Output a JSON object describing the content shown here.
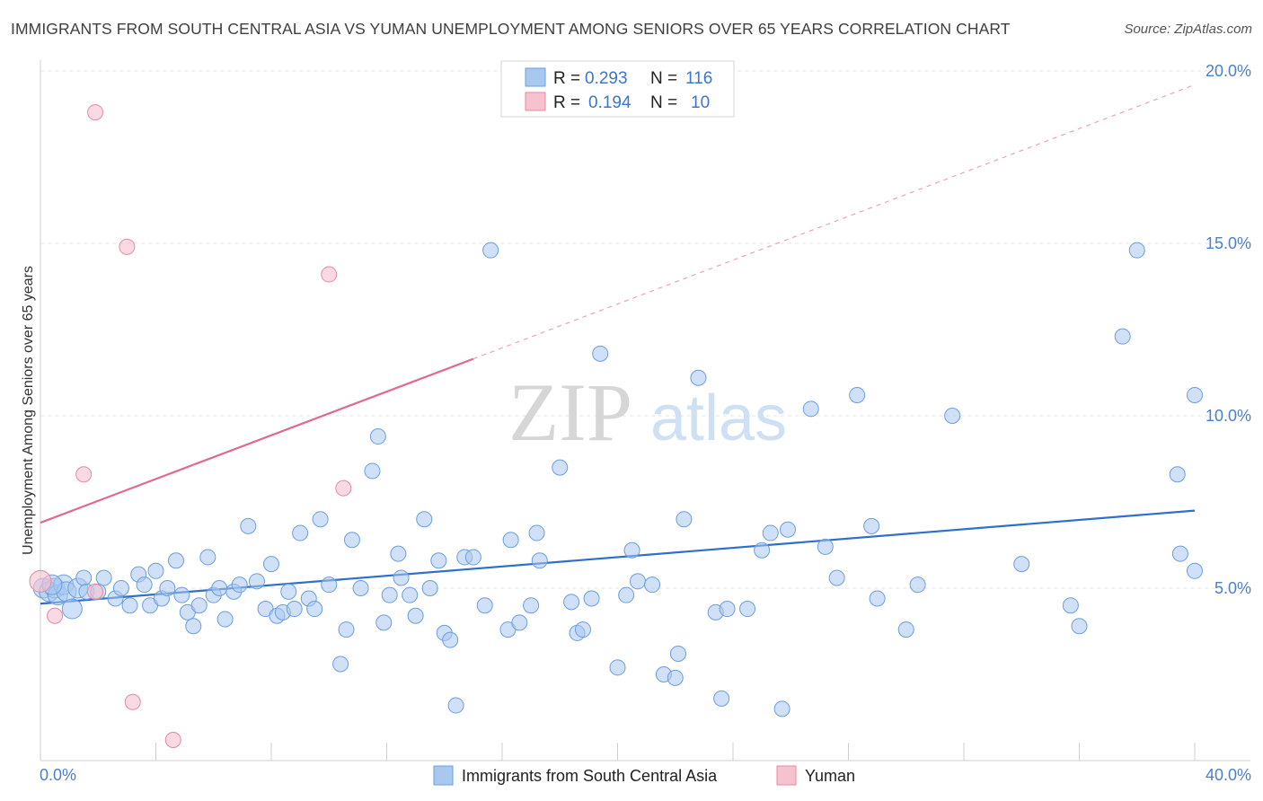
{
  "title": "IMMIGRANTS FROM SOUTH CENTRAL ASIA VS YUMAN UNEMPLOYMENT AMONG SENIORS OVER 65 YEARS CORRELATION CHART",
  "source": "Source: ZipAtlas.com",
  "watermark": {
    "zip": "ZIP",
    "atlas": "atlas"
  },
  "legend": {
    "r_label": "R =",
    "n_label": "N =",
    "rows": [
      {
        "r": "0.293",
        "n": "116"
      },
      {
        "r": "0.194",
        "n": "10"
      }
    ]
  },
  "chart_data": {
    "type": "scatter",
    "title": "IMMIGRANTS FROM SOUTH CENTRAL ASIA VS YUMAN UNEMPLOYMENT AMONG SENIORS OVER 65 YEARS CORRELATION CHART",
    "xlabel": "",
    "ylabel": "Unemployment Among Seniors over 65 years",
    "xlim": [
      0,
      40
    ],
    "ylim": [
      0,
      20
    ],
    "x_tick_labels": [
      "0.0%",
      "40.0%"
    ],
    "y_tick_labels": [
      "5.0%",
      "10.0%",
      "15.0%",
      "20.0%"
    ],
    "y_ticks": [
      5,
      10,
      15,
      20
    ],
    "grid": true,
    "legend_position": "top-center",
    "colors": {
      "blue_fill": "#a9c8f0",
      "blue_stroke": "#6b9ee0",
      "blue_line": "#2e6fcc",
      "pink_fill": "#f7c2cf",
      "pink_stroke": "#e58aa2",
      "pink_line": "#e0698f",
      "tick_text": "#4a7fd0"
    },
    "series": [
      {
        "name": "Immigrants from South Central Asia",
        "color": "#a9c8f0",
        "trend": {
          "x": [
            0,
            40
          ],
          "y": [
            4.55,
            7.25
          ]
        },
        "points": [
          [
            0.1,
            5.0
          ],
          [
            0.3,
            4.9
          ],
          [
            0.5,
            5.0
          ],
          [
            0.6,
            4.8
          ],
          [
            0.8,
            5.1
          ],
          [
            0.9,
            4.9
          ],
          [
            1.1,
            4.4
          ],
          [
            1.3,
            5.0
          ],
          [
            1.5,
            5.3
          ],
          [
            1.6,
            4.9
          ],
          [
            2.0,
            4.9
          ],
          [
            2.2,
            5.3
          ],
          [
            2.6,
            4.7
          ],
          [
            2.8,
            5.0
          ],
          [
            3.1,
            4.5
          ],
          [
            3.4,
            5.4
          ],
          [
            3.6,
            5.1
          ],
          [
            3.8,
            4.5
          ],
          [
            4.0,
            5.5
          ],
          [
            4.2,
            4.7
          ],
          [
            4.4,
            5.0
          ],
          [
            4.7,
            5.8
          ],
          [
            4.9,
            4.8
          ],
          [
            5.1,
            4.3
          ],
          [
            5.3,
            3.9
          ],
          [
            5.5,
            4.5
          ],
          [
            5.8,
            5.9
          ],
          [
            6.0,
            4.8
          ],
          [
            6.2,
            5.0
          ],
          [
            6.4,
            4.1
          ],
          [
            6.7,
            4.9
          ],
          [
            6.9,
            5.1
          ],
          [
            7.2,
            6.8
          ],
          [
            7.5,
            5.2
          ],
          [
            7.8,
            4.4
          ],
          [
            8.0,
            5.7
          ],
          [
            8.2,
            4.2
          ],
          [
            8.4,
            4.3
          ],
          [
            8.6,
            4.9
          ],
          [
            8.8,
            4.4
          ],
          [
            9.0,
            6.6
          ],
          [
            9.3,
            4.7
          ],
          [
            9.5,
            4.4
          ],
          [
            9.7,
            7.0
          ],
          [
            10.0,
            5.1
          ],
          [
            10.4,
            2.8
          ],
          [
            10.6,
            3.8
          ],
          [
            10.8,
            6.4
          ],
          [
            11.1,
            5.0
          ],
          [
            11.5,
            8.4
          ],
          [
            11.7,
            9.4
          ],
          [
            11.9,
            4.0
          ],
          [
            12.1,
            4.8
          ],
          [
            12.4,
            6.0
          ],
          [
            12.5,
            5.3
          ],
          [
            12.8,
            4.8
          ],
          [
            13.0,
            4.2
          ],
          [
            13.3,
            7.0
          ],
          [
            13.5,
            5.0
          ],
          [
            13.8,
            5.8
          ],
          [
            14.0,
            3.7
          ],
          [
            14.2,
            3.5
          ],
          [
            14.4,
            1.6
          ],
          [
            14.7,
            5.9
          ],
          [
            15.0,
            5.9
          ],
          [
            15.4,
            4.5
          ],
          [
            15.6,
            14.8
          ],
          [
            16.2,
            3.8
          ],
          [
            16.3,
            6.4
          ],
          [
            16.6,
            4.0
          ],
          [
            17.0,
            4.5
          ],
          [
            17.2,
            6.6
          ],
          [
            17.3,
            5.8
          ],
          [
            18.0,
            8.5
          ],
          [
            18.4,
            4.6
          ],
          [
            18.6,
            3.7
          ],
          [
            18.8,
            3.8
          ],
          [
            19.1,
            4.7
          ],
          [
            19.4,
            11.8
          ],
          [
            20.0,
            2.7
          ],
          [
            20.3,
            4.8
          ],
          [
            20.5,
            6.1
          ],
          [
            20.7,
            5.2
          ],
          [
            21.2,
            5.1
          ],
          [
            21.6,
            2.5
          ],
          [
            22.0,
            2.4
          ],
          [
            22.1,
            3.1
          ],
          [
            22.3,
            7.0
          ],
          [
            22.8,
            11.1
          ],
          [
            23.4,
            4.3
          ],
          [
            23.6,
            1.8
          ],
          [
            23.8,
            4.4
          ],
          [
            24.5,
            4.4
          ],
          [
            25.0,
            6.1
          ],
          [
            25.3,
            6.6
          ],
          [
            25.7,
            1.5
          ],
          [
            25.9,
            6.7
          ],
          [
            26.7,
            10.2
          ],
          [
            27.2,
            6.2
          ],
          [
            27.6,
            5.3
          ],
          [
            28.3,
            10.6
          ],
          [
            28.8,
            6.8
          ],
          [
            29.0,
            4.7
          ],
          [
            30.0,
            3.8
          ],
          [
            30.4,
            5.1
          ],
          [
            31.6,
            10.0
          ],
          [
            34.0,
            5.7
          ],
          [
            35.7,
            4.5
          ],
          [
            36.0,
            3.9
          ],
          [
            37.5,
            12.3
          ],
          [
            38.0,
            14.8
          ],
          [
            39.4,
            8.3
          ],
          [
            39.5,
            6.0
          ],
          [
            40.7,
            5.5
          ],
          [
            41.0,
            10.6
          ],
          [
            0.4,
            5.1
          ]
        ]
      },
      {
        "name": "Yuman",
        "color": "#f7c2cf",
        "trend": {
          "x": [
            0,
            15
          ],
          "y": [
            6.9,
            11.65
          ],
          "dashed_to_x": 40,
          "dashed_to_y": 19.6
        },
        "points": [
          [
            0.0,
            5.2
          ],
          [
            0.5,
            4.2
          ],
          [
            1.5,
            8.3
          ],
          [
            1.9,
            18.8
          ],
          [
            3.2,
            1.7
          ],
          [
            3.0,
            14.9
          ],
          [
            4.6,
            0.6
          ],
          [
            10.0,
            14.1
          ],
          [
            10.5,
            7.9
          ],
          [
            1.9,
            4.9
          ]
        ]
      }
    ]
  },
  "bottom_legend": [
    "Immigrants from South Central Asia",
    "Yuman"
  ]
}
